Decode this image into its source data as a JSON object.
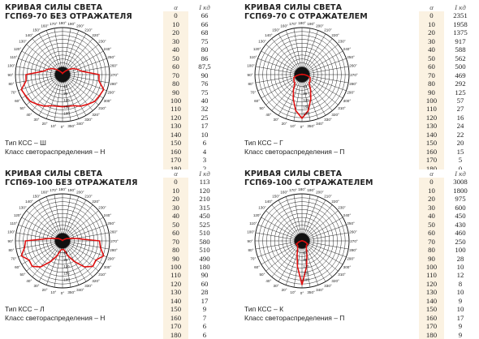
{
  "header": {
    "alpha": "α",
    "ikd": "I кд"
  },
  "scale_labels": [
    "0",
    "60",
    "90",
    "120",
    "150",
    "180"
  ],
  "angle_labels": [
    "180°",
    "190°",
    "200°",
    "210°",
    "220°",
    "230°",
    "240°",
    "250°",
    "260°",
    "270°",
    "280°",
    "290°",
    "300°",
    "310°",
    "320°",
    "330°",
    "340°",
    "350°",
    "0°",
    "10°",
    "20°",
    "30°",
    "40°",
    "50°",
    "60°",
    "70°",
    "80°",
    "90°",
    "100°",
    "110°",
    "120°",
    "130°",
    "140°",
    "150°",
    "160°",
    "170°"
  ],
  "panels": [
    {
      "title_line1": "КРИВАЯ СИЛЫ СВЕТА",
      "title_line2": "ГСП69-70 БЕЗ ОТРАЖАТЕЛЯ",
      "type_kss": "Тип КСС – Ш",
      "distribution": "Класс светораспределения – Н",
      "angles": [
        "0",
        "10",
        "20",
        "30",
        "40",
        "50",
        "60",
        "70",
        "80",
        "90",
        "100",
        "110",
        "120",
        "130",
        "140",
        "150",
        "160",
        "170",
        "180"
      ],
      "values": [
        "66",
        "66",
        "68",
        "75",
        "80",
        "86",
        "87,5",
        "90",
        "76",
        "75",
        "40",
        "32",
        "25",
        "17",
        "10",
        "6",
        "4",
        "3",
        "2"
      ]
    },
    {
      "title_line1": "КРИВАЯ СИЛЫ СВЕТА",
      "title_line2": "ГСП69-70 С ОТРАЖАТЕЛЕМ",
      "type_kss": "Тип КСС – Г",
      "distribution": "Класс светораспределения – П",
      "angles": [
        "0",
        "10",
        "20",
        "30",
        "40",
        "50",
        "60",
        "70",
        "80",
        "90",
        "100",
        "110",
        "120",
        "130",
        "140",
        "150",
        "160",
        "170",
        "180"
      ],
      "values": [
        "2351",
        "1958",
        "1375",
        "917",
        "588",
        "562",
        "500",
        "469",
        "292",
        "125",
        "57",
        "27",
        "16",
        "24",
        "22",
        "20",
        "15",
        "5",
        "0"
      ]
    },
    {
      "title_line1": "КРИВАЯ СИЛЫ СВЕТА",
      "title_line2": "ГСП69-100 БЕЗ ОТРАЖАТЕЛЯ",
      "type_kss": "Тип КСС – Л",
      "distribution": "Класс светораспределения – Н",
      "angles": [
        "0",
        "10",
        "20",
        "30",
        "40",
        "50",
        "60",
        "70",
        "80",
        "90",
        "100",
        "110",
        "120",
        "130",
        "140",
        "150",
        "160",
        "170",
        "180"
      ],
      "values": [
        "113",
        "120",
        "210",
        "315",
        "450",
        "525",
        "510",
        "580",
        "510",
        "490",
        "180",
        "90",
        "60",
        "28",
        "17",
        "9",
        "7",
        "6",
        "6"
      ]
    },
    {
      "title_line1": "КРИВАЯ СИЛЫ СВЕТА",
      "title_line2": "ГСП69-100 С ОТРАЖАТЕЛЕМ",
      "type_kss": "Тип КСС – К",
      "distribution": "Класс светораспределения – П",
      "angles": [
        "0",
        "10",
        "20",
        "30",
        "40",
        "50",
        "60",
        "70",
        "80",
        "90",
        "100",
        "110",
        "120",
        "130",
        "140",
        "150",
        "160",
        "170",
        "180"
      ],
      "values": [
        "3008",
        "1800",
        "975",
        "600",
        "450",
        "430",
        "460",
        "250",
        "100",
        "28",
        "10",
        "12",
        "8",
        "10",
        "9",
        "10",
        "17",
        "9",
        "9"
      ]
    }
  ]
}
